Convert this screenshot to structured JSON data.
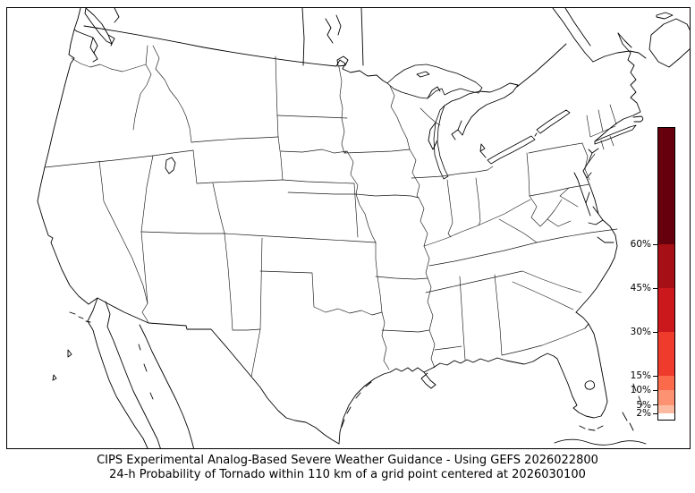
{
  "caption": {
    "line1": "CIPS Experimental Analog-Based Severe Weather Guidance - Using GEFS 2026022800",
    "line2": "24-h Probability of Tornado within 110 km of a grid point centered at 2026030100"
  },
  "colorbar": {
    "orientation": "vertical",
    "scale": {
      "min_percent": 0,
      "max_percent": 100
    },
    "ticks": [
      {
        "label": "60%",
        "percent": 60
      },
      {
        "label": "45%",
        "percent": 45
      },
      {
        "label": "30%",
        "percent": 30
      },
      {
        "label": "15%",
        "percent": 15
      },
      {
        "label": "10%",
        "percent": 10
      },
      {
        "label": "5%",
        "percent": 5
      },
      {
        "label": "2%",
        "percent": 2
      }
    ],
    "segments": [
      {
        "from": 60,
        "to": 100,
        "color": "#67000d"
      },
      {
        "from": 45,
        "to": 60,
        "color": "#a50f15"
      },
      {
        "from": 30,
        "to": 45,
        "color": "#cb181d"
      },
      {
        "from": 15,
        "to": 30,
        "color": "#ef3b2c"
      },
      {
        "from": 10,
        "to": 15,
        "color": "#fb6a4a"
      },
      {
        "from": 5,
        "to": 10,
        "color": "#fc9272"
      },
      {
        "from": 2,
        "to": 5,
        "color": "#fcbba1"
      },
      {
        "from": 0,
        "to": 2,
        "color": "#ffffff"
      }
    ]
  }
}
